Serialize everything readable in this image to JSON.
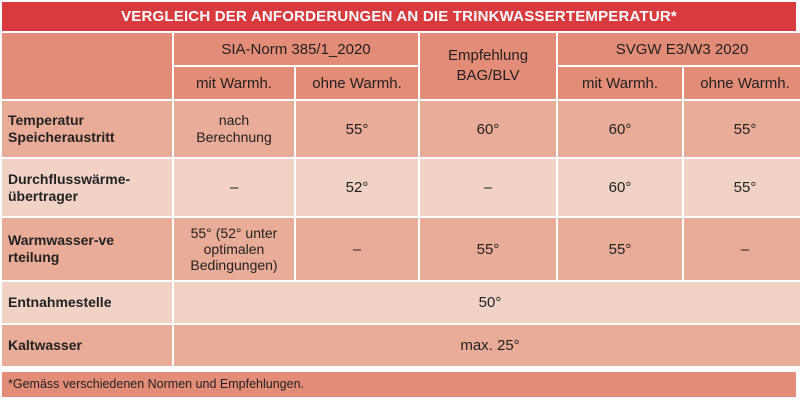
{
  "title": "VERGLEICH DER ANFORDERUNGEN AN DIE TRINKWASSERTEMPERATUR*",
  "headers": {
    "sia": "SIA-Norm 385/1_2020",
    "bag": "Empfehlung BAG/BLV",
    "svgw": "SVGW E3/W3 2020",
    "with": "mit Warmh.",
    "without": "ohne Warmh."
  },
  "rows": [
    {
      "label": "Temperatur Speicheraustritt",
      "sia_with": "nach Berechnung",
      "sia_without": "55°",
      "bag": "60°",
      "svgw_with": "60°",
      "svgw_without": "55°"
    },
    {
      "label": "Durchflusswärme-übertrager",
      "sia_with": "–",
      "sia_without": "52°",
      "bag": "–",
      "svgw_with": "60°",
      "svgw_without": "55°"
    },
    {
      "label": "Warmwasser-verteilung",
      "sia_with": "55° (52° unter optimalen Bedingungen)",
      "sia_without": "–",
      "bag": "55°",
      "svgw_with": "55°",
      "svgw_without": "–"
    },
    {
      "label": "Entnahmestelle",
      "value": "50°"
    },
    {
      "label": "Kaltwasser",
      "value": "max. 25°"
    }
  ],
  "footnote": "*Gemäss verschiedenen Normen und Empfehlungen."
}
